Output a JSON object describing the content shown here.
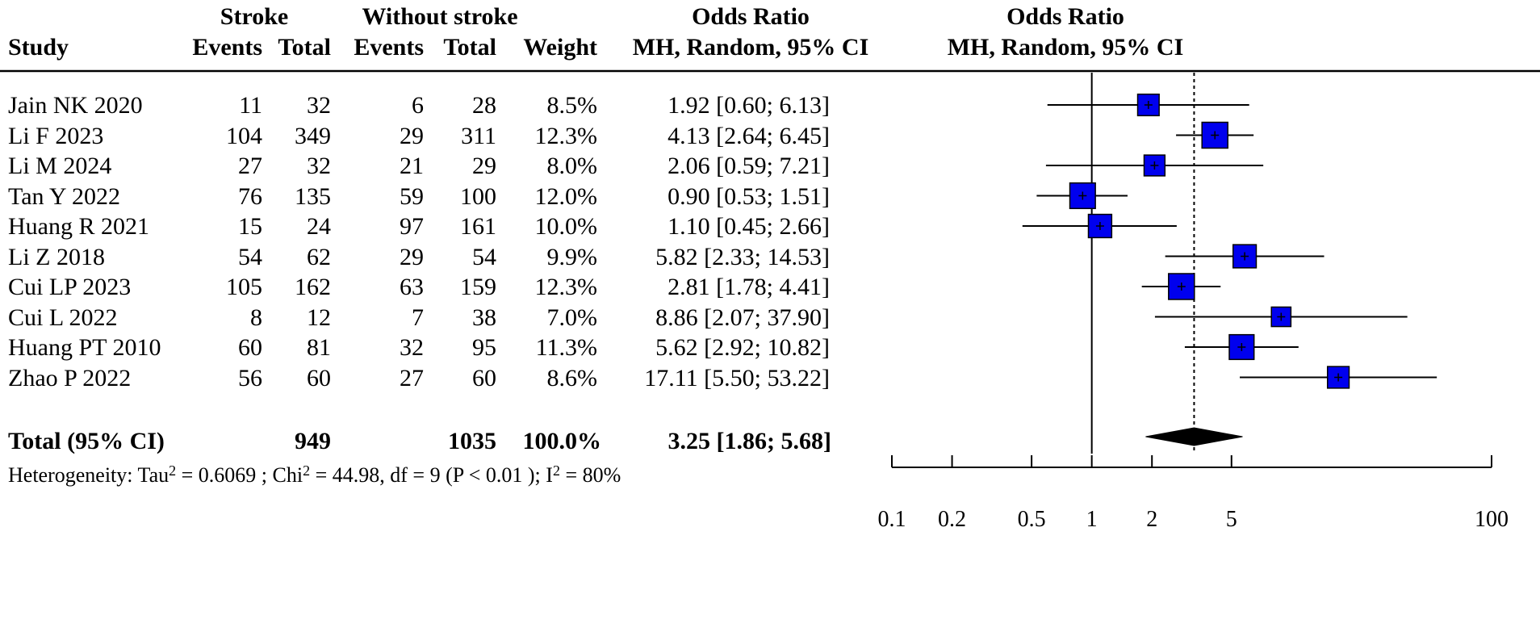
{
  "header": {
    "group1": "Stroke",
    "group2": "Without stroke",
    "study": "Study",
    "events1": "Events",
    "total1": "Total",
    "events2": "Events",
    "total2": "Total",
    "weight": "Weight",
    "or_title": "Odds Ratio",
    "or_method": "MH, Random, 95% CI",
    "plot_title": "Odds Ratio",
    "plot_method": "MH, Random, 95% CI"
  },
  "total_row": {
    "label": "Total (95% CI)",
    "total1": "949",
    "total2": "1035",
    "weight": "100.0%",
    "ci_text": "3.25 [1.86;  5.68]"
  },
  "heterogeneity": {
    "prefix": "Heterogeneity:  Tau",
    "tau": " = 0.6069  ; Chi",
    "chi": " = 44.98,  df = 9   (P < 0.01 );  I",
    "i2": " = 80%",
    "sup": "2"
  },
  "chart_data": {
    "type": "forest",
    "x_scale": "log",
    "xlim": [
      0.1,
      100
    ],
    "x_ticks": [
      "0.1",
      "0.2",
      "0.5",
      "1",
      "2",
      "5",
      "100"
    ],
    "x_tick_values": [
      0.1,
      0.2,
      0.5,
      1,
      2,
      5,
      100
    ],
    "reference_line": 1,
    "pooled_estimate": {
      "or": 3.25,
      "lo": 1.86,
      "hi": 5.68
    },
    "colors": {
      "box": "#0000ee",
      "line": "#000000",
      "diamond": "#000000"
    },
    "studies": [
      {
        "study": "Jain NK 2020",
        "e1": "11",
        "n1": "32",
        "e2": "6",
        "n2": "28",
        "weight": "8.5%",
        "or": 1.92,
        "lo": 0.6,
        "hi": 6.13,
        "ci_text": "1.92 [0.60;  6.13]"
      },
      {
        "study": "Li F 2023",
        "e1": "104",
        "n1": "349",
        "e2": "29",
        "n2": "311",
        "weight": "12.3%",
        "or": 4.13,
        "lo": 2.64,
        "hi": 6.45,
        "ci_text": "4.13 [2.64;  6.45]"
      },
      {
        "study": "Li M 2024",
        "e1": "27",
        "n1": "32",
        "e2": "21",
        "n2": "29",
        "weight": "8.0%",
        "or": 2.06,
        "lo": 0.59,
        "hi": 7.21,
        "ci_text": "2.06 [0.59;  7.21]"
      },
      {
        "study": "Tan Y 2022",
        "e1": "76",
        "n1": "135",
        "e2": "59",
        "n2": "100",
        "weight": "12.0%",
        "or": 0.9,
        "lo": 0.53,
        "hi": 1.51,
        "ci_text": "0.90 [0.53;  1.51]"
      },
      {
        "study": "Huang R 2021",
        "e1": "15",
        "n1": "24",
        "e2": "97",
        "n2": "161",
        "weight": "10.0%",
        "or": 1.1,
        "lo": 0.45,
        "hi": 2.66,
        "ci_text": "1.10 [0.45;  2.66]"
      },
      {
        "study": "Li Z 2018",
        "e1": "54",
        "n1": "62",
        "e2": "29",
        "n2": "54",
        "weight": "9.9%",
        "or": 5.82,
        "lo": 2.33,
        "hi": 14.53,
        "ci_text": "5.82 [2.33; 14.53]"
      },
      {
        "study": "Cui LP 2023",
        "e1": "105",
        "n1": "162",
        "e2": "63",
        "n2": "159",
        "weight": "12.3%",
        "or": 2.81,
        "lo": 1.78,
        "hi": 4.41,
        "ci_text": "2.81 [1.78;  4.41]"
      },
      {
        "study": "Cui L 2022",
        "e1": "8",
        "n1": "12",
        "e2": "7",
        "n2": "38",
        "weight": "7.0%",
        "or": 8.86,
        "lo": 2.07,
        "hi": 37.9,
        "ci_text": "8.86 [2.07; 37.90]"
      },
      {
        "study": "Huang PT 2010",
        "e1": "60",
        "n1": "81",
        "e2": "32",
        "n2": "95",
        "weight": "11.3%",
        "or": 5.62,
        "lo": 2.92,
        "hi": 10.82,
        "ci_text": "5.62 [2.92; 10.82]"
      },
      {
        "study": "Zhao P 2022",
        "e1": "56",
        "n1": "60",
        "e2": "27",
        "n2": "60",
        "weight": "8.6%",
        "or": 17.11,
        "lo": 5.5,
        "hi": 53.22,
        "ci_text": "17.11 [5.50; 53.22]"
      }
    ]
  }
}
